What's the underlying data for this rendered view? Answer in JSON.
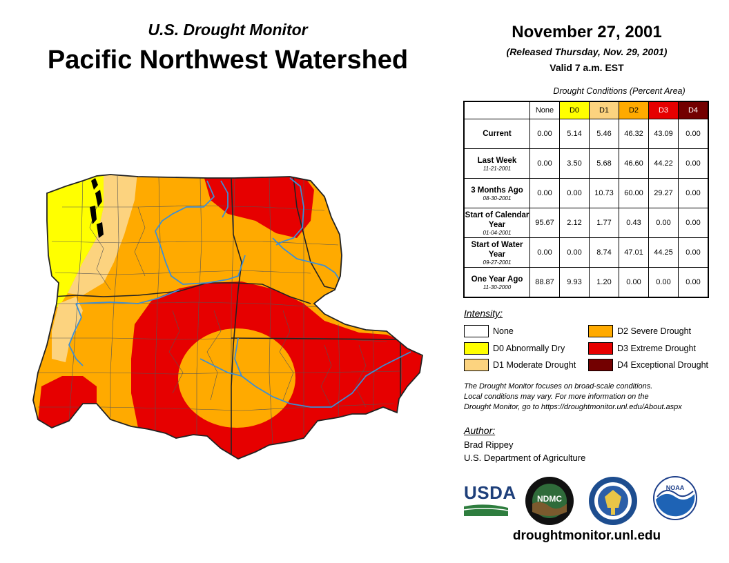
{
  "header": {
    "subtitle": "U.S. Drought Monitor",
    "title": "Pacific Northwest Watershed",
    "date": "November 27, 2001",
    "released": "(Released Thursday, Nov. 29, 2001)",
    "valid": "Valid 7 a.m. EST"
  },
  "table": {
    "caption": "Drought Conditions (Percent Area)",
    "columns": [
      {
        "label": "None",
        "color": "#ffffff",
        "text_color": "#000000"
      },
      {
        "label": "D0",
        "color": "#ffff00",
        "text_color": "#000000"
      },
      {
        "label": "D1",
        "color": "#fcd37f",
        "text_color": "#000000"
      },
      {
        "label": "D2",
        "color": "#ffaa00",
        "text_color": "#000000"
      },
      {
        "label": "D3",
        "color": "#e60000",
        "text_color": "#ffffff"
      },
      {
        "label": "D4",
        "color": "#730000",
        "text_color": "#ffffff"
      }
    ],
    "rows": [
      {
        "label": "Current",
        "date": "",
        "values": [
          "0.00",
          "5.14",
          "5.46",
          "46.32",
          "43.09",
          "0.00"
        ]
      },
      {
        "label": "Last Week",
        "date": "11-21-2001",
        "values": [
          "0.00",
          "3.50",
          "5.68",
          "46.60",
          "44.22",
          "0.00"
        ]
      },
      {
        "label": "3 Months Ago",
        "date": "08-30-2001",
        "values": [
          "0.00",
          "0.00",
          "10.73",
          "60.00",
          "29.27",
          "0.00"
        ]
      },
      {
        "label": "Start of Calendar Year",
        "date": "01-04-2001",
        "values": [
          "95.67",
          "2.12",
          "1.77",
          "0.43",
          "0.00",
          "0.00"
        ]
      },
      {
        "label": "Start of Water Year",
        "date": "09-27-2001",
        "values": [
          "0.00",
          "0.00",
          "8.74",
          "47.01",
          "44.25",
          "0.00"
        ]
      },
      {
        "label": "One Year Ago",
        "date": "11-30-2000",
        "values": [
          "88.87",
          "9.93",
          "1.20",
          "0.00",
          "0.00",
          "0.00"
        ]
      }
    ]
  },
  "legend": {
    "label": "Intensity:",
    "items": [
      {
        "label": "None",
        "color": "#ffffff"
      },
      {
        "label": "D0 Abnormally Dry",
        "color": "#ffff00"
      },
      {
        "label": "D1 Moderate Drought",
        "color": "#fcd37f"
      },
      {
        "label": "D2 Severe Drought",
        "color": "#ffaa00"
      },
      {
        "label": "D3 Extreme Drought",
        "color": "#e60000"
      },
      {
        "label": "D4 Exceptional Drought",
        "color": "#730000"
      }
    ]
  },
  "note": {
    "line1": "The Drought Monitor focuses on broad-scale conditions.",
    "line2": "Local conditions may vary. For more information on the",
    "line3": "Drought Monitor, go to https://droughtmonitor.unl.edu/About.aspx"
  },
  "author": {
    "label": "Author:",
    "name": "Brad Rippey",
    "org": "U.S. Department of Agriculture"
  },
  "logos": {
    "usda": "USDA",
    "ndmc": "NDMC",
    "noaa": "NOAA"
  },
  "url": "droughtmonitor.unl.edu",
  "map_colors": {
    "d0": "#ffff00",
    "d1": "#fcd37f",
    "d2": "#ffaa00",
    "d3": "#e60000",
    "rivers": "#3b8fd6",
    "county_lines": "#555555"
  }
}
